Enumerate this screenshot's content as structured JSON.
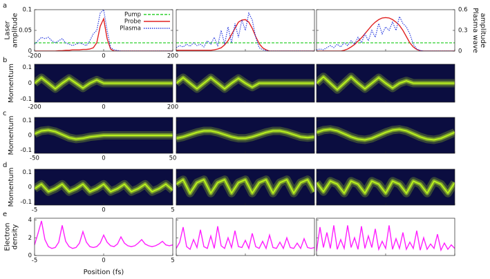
{
  "chart_data": [
    {
      "type": "line",
      "panel_label": "a",
      "ylabel": [
        "Laser",
        "amplitude"
      ],
      "y2label": [
        "Plasma wave",
        "amplitude"
      ],
      "xlim": [
        -200,
        200
      ],
      "xticks": [
        -200,
        0,
        200
      ],
      "ylim": [
        0,
        0.1
      ],
      "yticks": [
        0,
        0.05,
        0.1
      ],
      "y2lim": [
        0,
        0.6
      ],
      "y2ticks": [
        0,
        0.3,
        0.6
      ],
      "x": [
        -200,
        -190,
        -180,
        -170,
        -160,
        -150,
        -140,
        -130,
        -120,
        -110,
        -100,
        -90,
        -80,
        -70,
        -60,
        -50,
        -40,
        -30,
        -20,
        -10,
        0,
        10,
        20,
        30,
        40,
        50,
        60,
        70,
        80,
        90,
        100,
        110,
        120,
        130,
        140,
        150,
        160,
        170,
        180,
        190,
        200
      ],
      "series": [
        {
          "name": "Pump",
          "color": "#2fd02f",
          "style": "dashed"
        },
        {
          "name": "Probe",
          "color": "#e02020",
          "style": "solid"
        },
        {
          "name": "Plasma",
          "color": "#2a3ce0",
          "style": "dotted",
          "axis": "y2"
        }
      ],
      "panels": [
        {
          "values": [
            [
              0.02,
              0.02,
              0.02,
              0.02,
              0.02,
              0.02,
              0.02,
              0.02,
              0.02,
              0.02,
              0.02,
              0.02,
              0.02,
              0.02,
              0.02,
              0.02,
              0.02,
              0.02,
              0.02,
              0.02,
              0.02,
              0.02,
              0.02,
              0.02,
              0.02,
              0.02,
              0.02,
              0.02,
              0.02,
              0.02,
              0.02,
              0.02,
              0.02,
              0.02,
              0.02,
              0.02,
              0.02,
              0.02,
              0.02,
              0.02,
              0.02
            ],
            [
              0,
              0,
              0,
              0,
              0,
              0,
              0,
              0.001,
              0.001,
              0.002,
              0.002,
              0.003,
              0.003,
              0.003,
              0.004,
              0.004,
              0.005,
              0.008,
              0.02,
              0.06,
              0.078,
              0.03,
              0.005,
              0,
              0,
              0,
              0,
              0,
              0,
              0,
              0,
              0,
              0,
              0,
              0,
              0,
              0,
              0,
              0,
              0,
              0
            ],
            [
              0.1,
              0.15,
              0.2,
              0.18,
              0.2,
              0.15,
              0.12,
              0.15,
              0.18,
              0.12,
              0.1,
              0.08,
              0.1,
              0.12,
              0.1,
              0.08,
              0.15,
              0.25,
              0.3,
              0.55,
              0.6,
              0.3,
              0.05,
              0.02,
              0.01,
              0,
              0,
              0,
              0,
              0,
              0,
              0,
              0,
              0,
              0,
              0,
              0,
              0,
              0,
              0,
              0
            ]
          ]
        },
        {
          "values": [
            [
              0.02,
              0.02,
              0.02,
              0.02,
              0.02,
              0.02,
              0.02,
              0.02,
              0.02,
              0.02,
              0.02,
              0.02,
              0.02,
              0.02,
              0.02,
              0.02,
              0.02,
              0.02,
              0.02,
              0.02,
              0.02,
              0.02,
              0.02,
              0.02,
              0.02,
              0.02,
              0.02,
              0.02,
              0.02,
              0.02,
              0.02,
              0.02,
              0.02,
              0.02,
              0.02,
              0.02,
              0.02,
              0.02,
              0.02,
              0.02,
              0.02
            ],
            [
              0.002,
              0.002,
              0.002,
              0.002,
              0.002,
              0.002,
              0.002,
              0.002,
              0.002,
              0.002,
              0.002,
              0.003,
              0.005,
              0.008,
              0.015,
              0.025,
              0.04,
              0.055,
              0.07,
              0.075,
              0.076,
              0.07,
              0.055,
              0.035,
              0.018,
              0.008,
              0.003,
              0,
              0,
              0,
              0,
              0,
              0,
              0,
              0,
              0,
              0,
              0,
              0,
              0,
              0
            ],
            [
              0.05,
              0.08,
              0.06,
              0.1,
              0.07,
              0.12,
              0.08,
              0.1,
              0.06,
              0.15,
              0.1,
              0.2,
              0.08,
              0.3,
              0.1,
              0.35,
              0.12,
              0.4,
              0.2,
              0.45,
              0.3,
              0.55,
              0.45,
              0.2,
              0.05,
              0.02,
              0.01,
              0,
              0,
              0,
              0,
              0,
              0,
              0,
              0,
              0,
              0,
              0,
              0,
              0,
              0
            ]
          ]
        },
        {
          "values": [
            [
              0.02,
              0.02,
              0.02,
              0.02,
              0.02,
              0.02,
              0.02,
              0.02,
              0.02,
              0.02,
              0.02,
              0.02,
              0.02,
              0.02,
              0.02,
              0.02,
              0.02,
              0.02,
              0.02,
              0.02,
              0.02,
              0.02,
              0.02,
              0.02,
              0.02,
              0.02,
              0.02,
              0.02,
              0.02,
              0.02,
              0.02,
              0.02,
              0.02,
              0.02,
              0.02,
              0.02,
              0.02,
              0.02,
              0.02,
              0.02,
              0.02
            ],
            [
              0,
              0,
              0,
              0,
              0,
              0,
              0,
              0,
              0.002,
              0.005,
              0.01,
              0.016,
              0.024,
              0.032,
              0.042,
              0.052,
              0.062,
              0.07,
              0.076,
              0.08,
              0.081,
              0.08,
              0.076,
              0.07,
              0.062,
              0.05,
              0.035,
              0.02,
              0.01,
              0.004,
              0.001,
              0,
              0,
              0,
              0,
              0,
              0,
              0,
              0,
              0,
              0
            ],
            [
              0.02,
              0.03,
              0.02,
              0.05,
              0.08,
              0.05,
              0.1,
              0.06,
              0.12,
              0.08,
              0.15,
              0.1,
              0.2,
              0.12,
              0.25,
              0.15,
              0.3,
              0.2,
              0.4,
              0.25,
              0.35,
              0.3,
              0.42,
              0.3,
              0.5,
              0.4,
              0.35,
              0.25,
              0.1,
              0.03,
              0.01,
              0,
              0,
              0,
              0,
              0,
              0,
              0,
              0,
              0,
              0
            ]
          ]
        }
      ]
    },
    {
      "type": "phase_space",
      "panel_label": "b",
      "ylabel": [
        "Momentum"
      ],
      "background": "#0b0d40",
      "xlim": [
        -200,
        200
      ],
      "xticks": [
        -200,
        0,
        200
      ],
      "ylim": [
        -0.12,
        0.12
      ],
      "yticks": [
        -0.1,
        0,
        0.1
      ],
      "x": [
        -200,
        -180,
        -160,
        -140,
        -120,
        -100,
        -80,
        -60,
        -40,
        -20,
        0,
        20,
        40,
        60,
        80,
        100,
        120,
        140,
        160,
        180,
        200
      ],
      "series": [
        {
          "color": "#b8f020"
        }
      ],
      "panels": [
        {
          "values": [
            [
              0,
              0.035,
              0,
              -0.035,
              0,
              0.03,
              0,
              -0.03,
              0,
              0.02,
              0,
              0,
              0,
              0,
              0,
              0,
              0,
              0,
              0,
              0,
              0
            ]
          ]
        },
        {
          "values": [
            [
              0,
              0.035,
              0,
              -0.035,
              0,
              0.035,
              0,
              -0.035,
              0,
              0.03,
              0,
              -0.025,
              0,
              0,
              0,
              0,
              0,
              0,
              0,
              0,
              0
            ]
          ]
        },
        {
          "values": [
            [
              0,
              0.04,
              0,
              -0.04,
              0,
              0.04,
              0,
              -0.035,
              0,
              0.035,
              0,
              -0.03,
              0,
              0.015,
              0,
              0,
              0,
              0,
              0,
              0,
              0
            ]
          ]
        }
      ]
    },
    {
      "type": "phase_space",
      "panel_label": "c",
      "ylabel": [
        "Momentum"
      ],
      "background": "#0b0d40",
      "xlim": [
        -50,
        50
      ],
      "xticks": [
        -50,
        0,
        50
      ],
      "ylim": [
        -0.12,
        0.12
      ],
      "yticks": [
        -0.1,
        0,
        0.1
      ],
      "x": [
        -50,
        -45,
        -40,
        -35,
        -30,
        -25,
        -20,
        -15,
        -10,
        -5,
        0,
        5,
        10,
        15,
        20,
        25,
        30,
        35,
        40,
        45,
        50
      ],
      "series": [
        {
          "color": "#b8f020"
        }
      ],
      "panels": [
        {
          "values": [
            [
              0.01,
              0.03,
              0.035,
              0.025,
              0.005,
              -0.015,
              -0.025,
              -0.02,
              -0.01,
              -0.005,
              0,
              0,
              0,
              0,
              0,
              0,
              0,
              0,
              0,
              0,
              0
            ]
          ]
        },
        {
          "values": [
            [
              -0.02,
              -0.01,
              0.005,
              0.02,
              0.03,
              0.03,
              0.02,
              0.005,
              -0.01,
              -0.02,
              -0.02,
              -0.01,
              0.005,
              0.02,
              0.03,
              0.03,
              0.02,
              0.005,
              -0.01,
              -0.015,
              -0.01
            ]
          ]
        },
        {
          "values": [
            [
              0.02,
              0.035,
              0.04,
              0.03,
              0.01,
              -0.01,
              -0.025,
              -0.03,
              -0.02,
              0,
              0.02,
              0.035,
              0.04,
              0.03,
              0.01,
              -0.01,
              -0.025,
              -0.03,
              -0.02,
              0,
              0.02
            ]
          ]
        }
      ]
    },
    {
      "type": "phase_space",
      "panel_label": "d",
      "ylabel": [
        "Momentum"
      ],
      "background": "#0b0d40",
      "xlim": [
        -5,
        5
      ],
      "xticks": [
        -5,
        0,
        5
      ],
      "ylim": [
        -0.12,
        0.12
      ],
      "yticks": [
        -0.1,
        0,
        0.1
      ],
      "x": [
        -5,
        -4.5,
        -4,
        -3.5,
        -3,
        -2.5,
        -2,
        -1.5,
        -1,
        -0.5,
        0,
        0.5,
        1,
        1.5,
        2,
        2.5,
        3,
        3.5,
        4,
        4.5,
        5
      ],
      "series": [
        {
          "color": "#b8f020"
        }
      ],
      "panels": [
        {
          "values": [
            [
              -0.01,
              0.02,
              -0.03,
              -0.01,
              0.02,
              -0.03,
              -0.01,
              0.02,
              -0.03,
              -0.01,
              0.02,
              -0.03,
              -0.01,
              0.02,
              -0.03,
              -0.01,
              0.02,
              -0.03,
              -0.01,
              0.02,
              -0.02
            ]
          ]
        },
        {
          "values": [
            [
              0.02,
              0.05,
              -0.04,
              0.03,
              0.05,
              -0.04,
              0.03,
              0.05,
              -0.04,
              0.03,
              0.05,
              -0.04,
              0.03,
              0.05,
              -0.04,
              0.03,
              0.05,
              -0.04,
              0.03,
              0.05,
              -0.03
            ]
          ]
        },
        {
          "values": [
            [
              0.03,
              -0.03,
              0.04,
              0.02,
              -0.04,
              0.04,
              0.02,
              -0.04,
              0.04,
              0.02,
              -0.04,
              0.04,
              0.02,
              -0.04,
              0.04,
              0.02,
              -0.04,
              0.04,
              0.02,
              -0.04,
              0.03
            ]
          ]
        }
      ]
    },
    {
      "type": "line",
      "panel_label": "e",
      "ylabel": [
        "Electron",
        "density"
      ],
      "xlabel": "Position (fs)",
      "xlim": [
        -5,
        5
      ],
      "xticks": [
        -5,
        0,
        5
      ],
      "ylim": [
        0,
        4.2
      ],
      "yticks": [
        0,
        2,
        4
      ],
      "x": [
        -5,
        -4.75,
        -4.5,
        -4.25,
        -4,
        -3.75,
        -3.5,
        -3.25,
        -3,
        -2.75,
        -2.5,
        -2.25,
        -2,
        -1.75,
        -1.5,
        -1.25,
        -1,
        -0.75,
        -0.5,
        -0.25,
        0,
        0.25,
        0.5,
        0.75,
        1,
        1.25,
        1.5,
        1.75,
        2,
        2.25,
        2.5,
        2.75,
        3,
        3.25,
        3.5,
        3.75,
        4,
        4.25,
        4.5,
        4.75,
        5
      ],
      "series": [
        {
          "color": "#ff1eff",
          "style": "solid"
        }
      ],
      "panels": [
        {
          "values": [
            [
              1.2,
              2.5,
              3.9,
              1.8,
              1.0,
              0.8,
              0.9,
              1.5,
              3.4,
              1.6,
              1.0,
              0.8,
              0.9,
              1.4,
              2.7,
              1.5,
              1.0,
              0.9,
              1.0,
              1.4,
              2.3,
              1.5,
              1.1,
              1.0,
              1.3,
              2.1,
              1.4,
              1.1,
              1.0,
              1.1,
              1.4,
              1.8,
              1.3,
              1.1,
              1.0,
              1.1,
              1.3,
              1.6,
              1.2,
              1.1,
              1.2
            ]
          ]
        },
        {
          "values": [
            [
              0.8,
              1.5,
              3.2,
              1.0,
              0.7,
              1.8,
              0.9,
              2.9,
              1.0,
              0.8,
              2.2,
              0.8,
              3.3,
              1.1,
              0.8,
              2.0,
              0.9,
              2.8,
              1.0,
              0.9,
              1.7,
              0.8,
              2.5,
              1.0,
              0.8,
              1.6,
              0.8,
              2.3,
              0.9,
              0.8,
              1.5,
              0.8,
              2.0,
              0.9,
              0.8,
              1.4,
              0.8,
              1.9,
              0.9,
              0.8,
              0.9
            ]
          ]
        },
        {
          "values": [
            [
              0.5,
              3.2,
              0.9,
              2.6,
              0.8,
              3.4,
              0.7,
              1.8,
              0.8,
              3.4,
              0.9,
              2.0,
              0.7,
              3.3,
              0.8,
              2.2,
              0.9,
              3.0,
              0.7,
              1.6,
              0.8,
              3.4,
              0.7,
              1.9,
              0.8,
              2.6,
              0.7,
              1.5,
              0.8,
              2.8,
              0.6,
              2.0,
              0.7,
              1.3,
              0.8,
              2.4,
              0.6,
              1.4,
              0.7,
              1.2,
              0.8
            ]
          ]
        }
      ]
    }
  ]
}
